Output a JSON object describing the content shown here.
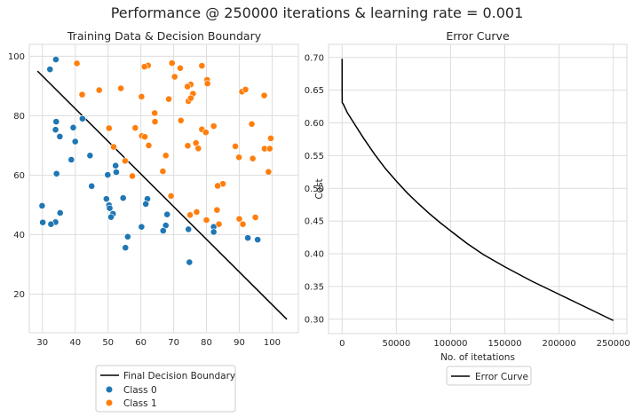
{
  "suptitle": "Performance @ 250000 iterations & learning rate = 0.001",
  "chart_data": [
    {
      "type": "scatter",
      "title": "Training Data & Decision Boundary",
      "xlabel": "",
      "ylabel": "",
      "xlim": [
        26,
        108
      ],
      "ylim": [
        7,
        104
      ],
      "xticks": [
        30,
        40,
        50,
        60,
        70,
        80,
        90,
        100
      ],
      "yticks": [
        20,
        40,
        60,
        80,
        100
      ],
      "grid": true,
      "legend_position": "below",
      "line": {
        "name": "Final Decision Boundary",
        "color": "#000000",
        "x": [
          28.5,
          104.5
        ],
        "y": [
          95.0,
          11.5
        ]
      },
      "series": [
        {
          "name": "Class 0",
          "color": "#1f77b4",
          "points": [
            [
              34.1,
              98.9
            ],
            [
              32.3,
              95.6
            ],
            [
              42.2,
              79.0
            ],
            [
              34.2,
              78.0
            ],
            [
              39.4,
              76.0
            ],
            [
              34.0,
              75.3
            ],
            [
              35.3,
              73.0
            ],
            [
              40.0,
              71.3
            ],
            [
              44.5,
              66.6
            ],
            [
              38.8,
              65.2
            ],
            [
              52.3,
              63.2
            ],
            [
              52.5,
              61.0
            ],
            [
              34.3,
              60.5
            ],
            [
              49.9,
              60.1
            ],
            [
              45.0,
              56.3
            ],
            [
              54.6,
              52.3
            ],
            [
              49.5,
              52.0
            ],
            [
              62.0,
              52.0
            ],
            [
              50.3,
              49.9
            ],
            [
              29.9,
              49.7
            ],
            [
              61.5,
              50.3
            ],
            [
              50.5,
              48.9
            ],
            [
              51.5,
              47.0
            ],
            [
              35.4,
              47.3
            ],
            [
              68.0,
              46.8
            ],
            [
              50.9,
              45.9
            ],
            [
              30.1,
              44.1
            ],
            [
              34.0,
              44.2
            ],
            [
              32.6,
              43.5
            ],
            [
              67.6,
              43.1
            ],
            [
              60.2,
              42.6
            ],
            [
              82.2,
              42.6
            ],
            [
              74.5,
              41.8
            ],
            [
              82.2,
              40.9
            ],
            [
              66.8,
              41.3
            ],
            [
              56.0,
              39.3
            ],
            [
              92.6,
              38.9
            ],
            [
              95.6,
              38.3
            ],
            [
              55.3,
              35.6
            ],
            [
              74.8,
              30.7
            ]
          ]
        },
        {
          "name": "Class 1",
          "color": "#ff7f0e",
          "points": [
            [
              40.5,
              97.6
            ],
            [
              69.5,
              97.7
            ],
            [
              62.2,
              96.9
            ],
            [
              61.1,
              96.5
            ],
            [
              78.6,
              96.8
            ],
            [
              72.0,
              96.0
            ],
            [
              80.2,
              92.1
            ],
            [
              80.3,
              90.8
            ],
            [
              70.3,
              93.1
            ],
            [
              75.2,
              90.5
            ],
            [
              90.8,
              88.1
            ],
            [
              91.9,
              88.8
            ],
            [
              97.6,
              86.8
            ],
            [
              74.2,
              89.8
            ],
            [
              75.9,
              87.4
            ],
            [
              53.9,
              89.2
            ],
            [
              47.3,
              88.6
            ],
            [
              42.1,
              87.1
            ],
            [
              60.2,
              86.4
            ],
            [
              68.5,
              85.6
            ],
            [
              74.5,
              84.9
            ],
            [
              75.2,
              85.9
            ],
            [
              64.2,
              80.9
            ],
            [
              72.2,
              78.4
            ],
            [
              64.3,
              78.0
            ],
            [
              93.8,
              77.2
            ],
            [
              58.3,
              75.9
            ],
            [
              50.3,
              75.8
            ],
            [
              82.2,
              76.5
            ],
            [
              78.6,
              75.4
            ],
            [
              79.8,
              74.4
            ],
            [
              60.3,
              73.2
            ],
            [
              61.2,
              72.9
            ],
            [
              99.6,
              72.4
            ],
            [
              62.4,
              70.0
            ],
            [
              74.3,
              69.9
            ],
            [
              76.8,
              70.8
            ],
            [
              51.7,
              69.5
            ],
            [
              77.5,
              69.0
            ],
            [
              88.8,
              69.7
            ],
            [
              97.7,
              68.9
            ],
            [
              99.3,
              68.9
            ],
            [
              89.9,
              66.0
            ],
            [
              94.1,
              65.6
            ],
            [
              67.6,
              66.6
            ],
            [
              55.2,
              64.8
            ],
            [
              66.7,
              61.3
            ],
            [
              98.9,
              61.1
            ],
            [
              57.4,
              59.7
            ],
            [
              85.0,
              57.1
            ],
            [
              83.4,
              56.4
            ],
            [
              69.2,
              53.0
            ],
            [
              77.0,
              47.6
            ],
            [
              75.0,
              46.6
            ],
            [
              94.9,
              45.8
            ],
            [
              80.0,
              44.9
            ],
            [
              90.0,
              45.3
            ],
            [
              91.1,
              43.5
            ],
            [
              83.8,
              43.5
            ],
            [
              83.2,
              48.3
            ]
          ]
        }
      ]
    },
    {
      "type": "line",
      "title": "Error Curve",
      "xlabel": "No. of itetations",
      "ylabel": "Cost",
      "xlim": [
        -12500,
        262500
      ],
      "ylim": [
        0.278,
        0.72
      ],
      "xticks": [
        0,
        50000,
        100000,
        150000,
        200000,
        250000
      ],
      "yticks": [
        0.3,
        0.35,
        0.4,
        0.45,
        0.5,
        0.55,
        0.6,
        0.65,
        0.7
      ],
      "ytick_labels": [
        "0.30",
        "0.35",
        "0.40",
        "0.45",
        "0.50",
        "0.55",
        "0.60",
        "0.65",
        "0.70"
      ],
      "grid": true,
      "legend_position": "below",
      "series": [
        {
          "name": "Error Curve",
          "color": "#000000",
          "x": [
            0,
            2,
            10,
            100,
            1000,
            5000,
            10000,
            20000,
            30000,
            40000,
            50000,
            60000,
            70000,
            80000,
            90000,
            100000,
            115000,
            130000,
            150000,
            175000,
            200000,
            225000,
            250000
          ],
          "y": [
            0.698,
            0.68,
            0.65,
            0.631,
            0.629,
            0.615,
            0.602,
            0.576,
            0.552,
            0.53,
            0.511,
            0.493,
            0.477,
            0.462,
            0.448,
            0.435,
            0.416,
            0.399,
            0.38,
            0.358,
            0.338,
            0.318,
            0.298
          ]
        }
      ]
    }
  ]
}
